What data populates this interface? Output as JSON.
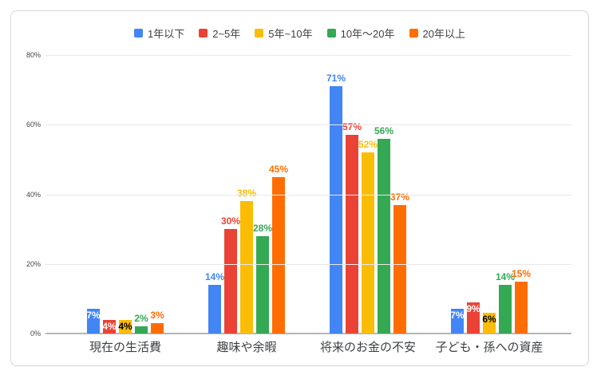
{
  "chart_data": {
    "type": "bar",
    "categories": [
      "現在の生活費",
      "趣味や余暇",
      "将来のお金の不安",
      "子ども・孫への資産"
    ],
    "series": [
      {
        "name": "1年以下",
        "color": "#4285F4",
        "values": [
          7,
          14,
          71,
          7
        ],
        "label_placement": [
          "inside",
          "above",
          "above",
          "inside"
        ],
        "inside_text_color": "#ffffff"
      },
      {
        "name": "2~5年",
        "color": "#EA4335",
        "values": [
          4,
          30,
          57,
          9
        ],
        "label_placement": [
          "inside",
          "above",
          "above",
          "inside"
        ],
        "inside_text_color": "#ffffff"
      },
      {
        "name": "5年~10年",
        "color": "#FBBC04",
        "values": [
          4,
          38,
          52,
          6
        ],
        "label_placement": [
          "inside",
          "above",
          "above",
          "inside"
        ],
        "inside_text_color": "#000000"
      },
      {
        "name": "10年～20年",
        "color": "#34A853",
        "values": [
          2,
          28,
          56,
          14
        ],
        "label_placement": [
          "above",
          "above",
          "above",
          "above"
        ],
        "inside_text_color": "#ffffff"
      },
      {
        "name": "20年以上",
        "color": "#FF6D00",
        "values": [
          3,
          45,
          37,
          15
        ],
        "label_placement": [
          "above",
          "above",
          "above",
          "above"
        ],
        "inside_text_color": "#ffffff"
      }
    ],
    "value_suffix": "%",
    "ylim": [
      0,
      80
    ],
    "yticks": [
      0,
      20,
      40,
      60,
      80
    ],
    "grid": true,
    "legend_position": "top",
    "colors": {
      "grid": "#e8e8e8",
      "baseline": "#b5b5b5",
      "axis_text": "#444444",
      "category_text": "#3c4043",
      "legend_text": "#3c4043",
      "card_border": "#d6d6d6",
      "background": "#ffffff"
    }
  }
}
